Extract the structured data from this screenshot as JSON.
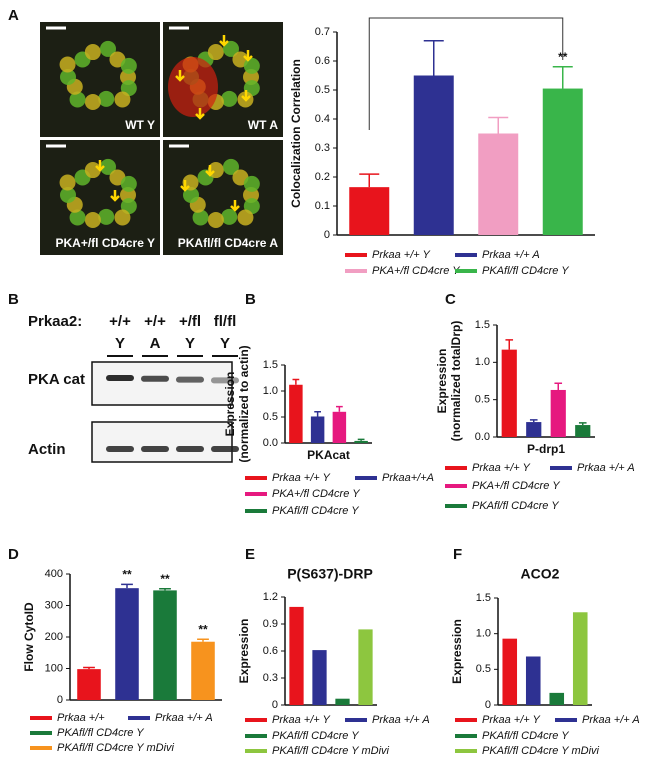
{
  "micrographs": {
    "panel": "A",
    "labels": [
      "WT Y",
      "WT A",
      "PKA+/fl CD4cre Y",
      "PKAfl/fl CD4cre A"
    ]
  },
  "blot": {
    "panel": "B",
    "header": "Prkaa2:",
    "genotypes": [
      "+/+",
      "+/+",
      "+/fl",
      "fl/fl"
    ],
    "groups": [
      "Y",
      "A",
      "Y",
      "Y"
    ],
    "rows": [
      "PKA cat",
      "Actin"
    ]
  },
  "chart_data": [
    {
      "type": "bar",
      "ylabel": [
        "Colocalization Correlation"
      ],
      "ylim": [
        0,
        0.7
      ],
      "yticks": [
        0,
        0.1,
        0.2,
        0.3,
        0.4,
        0.5,
        0.6,
        0.7
      ],
      "series": [
        {
          "name": "Prkaa +/+ Y",
          "color": "#e8141c",
          "values": [
            0.165
          ],
          "errors": [
            0.045
          ]
        },
        {
          "name": "Prkaa +/+ A",
          "color": "#2e3192",
          "values": [
            0.55
          ],
          "errors": [
            0.12
          ]
        },
        {
          "name": "PKA+/fl CD4cre Y",
          "color": "#f19ec2",
          "values": [
            0.35
          ],
          "errors": [
            0.055
          ]
        },
        {
          "name": "PKAfl/fl CD4cre Y",
          "color": "#39b54a",
          "values": [
            0.505
          ],
          "errors": [
            0.075
          ],
          "annotation": "**"
        }
      ]
    },
    {
      "type": "bar",
      "panel": "B",
      "ylabel": [
        "Expression",
        "(normalized to actin)"
      ],
      "categories": [
        "PKAcat"
      ],
      "ylim": [
        0,
        1.5
      ],
      "yticks": [
        {
          "value": 0,
          "label": "0.0"
        },
        0.5,
        {
          "value": 1,
          "label": "1.0"
        },
        1.5
      ],
      "series": [
        {
          "name": "Prkaa +/+ Y",
          "color": "#e8141c",
          "values": [
            1.12
          ],
          "errors": [
            0.1
          ]
        },
        {
          "name": "Prkaa+/+A",
          "color": "#2e3192",
          "values": [
            0.51
          ],
          "errors": [
            0.09
          ]
        },
        {
          "name": "PKA+/fl CD4cre Y",
          "color": "#e6197f",
          "values": [
            0.6
          ],
          "errors": [
            0.1
          ]
        },
        {
          "name": "PKAfl/fl CD4cre Y",
          "color": "#1a7a3a",
          "values": [
            0.04
          ],
          "errors": [
            0.03
          ]
        }
      ]
    },
    {
      "type": "bar",
      "panel": "C",
      "ylabel": [
        "Expression",
        "(normalized totalDrp)"
      ],
      "categories": [
        "P-drp1"
      ],
      "ylim": [
        0,
        1.5
      ],
      "yticks": [
        {
          "value": 0,
          "label": "0.0"
        },
        0.5,
        {
          "value": 1,
          "label": "1.0"
        },
        1.5
      ],
      "series": [
        {
          "name": "Prkaa +/+ Y",
          "color": "#e8141c",
          "values": [
            1.17
          ],
          "errors": [
            0.13
          ]
        },
        {
          "name": "Prkaa +/+ A",
          "color": "#2e3192",
          "values": [
            0.2
          ],
          "errors": [
            0.03
          ]
        },
        {
          "name": "PKA+/fl CD4cre Y",
          "color": "#e6197f",
          "values": [
            0.63
          ],
          "errors": [
            0.09
          ]
        },
        {
          "name": "PKAfl/fl CD4cre Y",
          "color": "#1a7a3a",
          "values": [
            0.16
          ],
          "errors": [
            0.03
          ]
        }
      ]
    },
    {
      "type": "bar",
      "panel": "D",
      "ylabel": [
        "Flow CytoID"
      ],
      "ylim": [
        0,
        400
      ],
      "yticks": [
        0,
        100,
        200,
        300,
        400
      ],
      "series": [
        {
          "name": "Prkaa +/+",
          "color": "#e8141c",
          "values": [
            98
          ],
          "errors": [
            5
          ]
        },
        {
          "name": "Prkaa +/+ A",
          "color": "#2e3192",
          "values": [
            355
          ],
          "errors": [
            12
          ],
          "annotation": "**"
        },
        {
          "name": "PKAfl/fl CD4cre Y",
          "color": "#1a7a3a",
          "values": [
            348
          ],
          "errors": [
            5
          ],
          "annotation": "**"
        },
        {
          "name": "PKAfl/fl CD4cre Y mDivi",
          "color": "#f7931e",
          "values": [
            185
          ],
          "errors": [
            8
          ],
          "annotation": "**"
        }
      ]
    },
    {
      "type": "bar",
      "panel": "E",
      "title": "P(S637)-DRP",
      "ylabel": [
        "Expression"
      ],
      "ylim": [
        0,
        1.2
      ],
      "yticks": [
        0,
        0.3,
        0.6,
        0.9,
        1.2
      ],
      "series": [
        {
          "name": "Prkaa +/+ Y",
          "color": "#e8141c",
          "values": [
            1.09
          ]
        },
        {
          "name": "Prkaa +/+ A",
          "color": "#2e3192",
          "values": [
            0.61
          ]
        },
        {
          "name": "PKAfl/fl CD4cre Y",
          "color": "#1a7a3a",
          "values": [
            0.07
          ]
        },
        {
          "name": "PKAfl/fl CD4cre Y mDivi",
          "color": "#8dc63f",
          "values": [
            0.84
          ]
        }
      ]
    },
    {
      "type": "bar",
      "panel": "F",
      "title": "ACO2",
      "ylabel": [
        "Expression"
      ],
      "ylim": [
        0,
        1.5
      ],
      "yticks": [
        0,
        0.5,
        {
          "value": 1,
          "label": "1.0"
        },
        1.5
      ],
      "series": [
        {
          "name": "Prkaa +/+ Y",
          "color": "#e8141c",
          "values": [
            0.93
          ]
        },
        {
          "name": "Prkaa +/+ A",
          "color": "#2e3192",
          "values": [
            0.68
          ]
        },
        {
          "name": "PKAfl/fl CD4cre Y",
          "color": "#1a7a3a",
          "values": [
            0.17
          ]
        },
        {
          "name": "PKAfl/fl CD4cre Y mDivi",
          "color": "#8dc63f",
          "values": [
            1.3
          ]
        }
      ]
    }
  ]
}
